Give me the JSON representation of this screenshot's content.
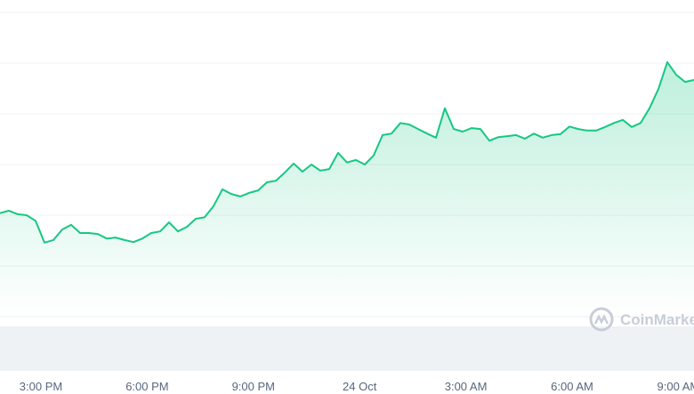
{
  "chart_data": {
    "type": "line",
    "watermark": "CoinMarketCap",
    "x_tick_labels": [
      "3:00 PM",
      "6:00 PM",
      "9:00 PM",
      "24 Oct",
      "3:00 AM",
      "6:00 AM",
      "9:00 AM"
    ],
    "values": [
      2.04,
      2.09,
      2.02,
      2.0,
      1.89,
      1.46,
      1.51,
      1.72,
      1.81,
      1.65,
      1.65,
      1.63,
      1.54,
      1.56,
      1.51,
      1.47,
      1.54,
      1.65,
      1.68,
      1.86,
      1.68,
      1.77,
      1.93,
      1.96,
      2.18,
      2.51,
      2.42,
      2.37,
      2.44,
      2.49,
      2.65,
      2.68,
      2.84,
      3.02,
      2.86,
      3.0,
      2.88,
      2.91,
      3.23,
      3.04,
      3.09,
      3.0,
      3.18,
      3.58,
      3.61,
      3.82,
      3.79,
      3.7,
      3.61,
      3.53,
      4.11,
      3.7,
      3.65,
      3.72,
      3.7,
      3.47,
      3.54,
      3.56,
      3.58,
      3.51,
      3.61,
      3.53,
      3.58,
      3.6,
      3.75,
      3.7,
      3.67,
      3.67,
      3.74,
      3.82,
      3.88,
      3.74,
      3.82,
      4.11,
      4.49,
      5.02,
      4.77,
      4.63,
      4.67
    ],
    "color": "#16c784",
    "ylim": [
      0,
      6
    ],
    "yticks": [
      0,
      1,
      2,
      3,
      4,
      5,
      6
    ],
    "grid": true
  }
}
